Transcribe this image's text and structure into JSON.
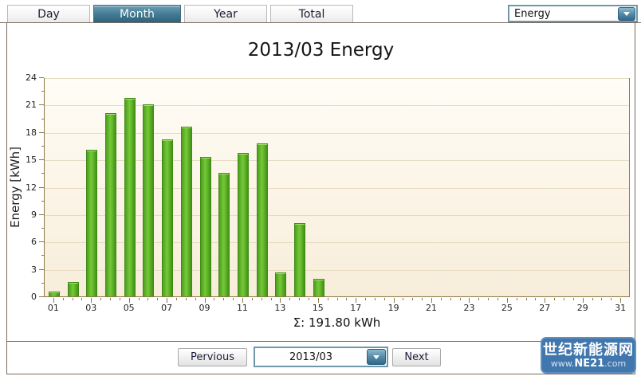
{
  "tabs": [
    {
      "label": "Day",
      "active": false
    },
    {
      "label": "Month",
      "active": true
    },
    {
      "label": "Year",
      "active": false
    },
    {
      "label": "Total",
      "active": false
    }
  ],
  "top_dropdown": {
    "value": "Energy"
  },
  "chart_data": {
    "type": "bar",
    "title": "2013/03 Energy",
    "ylabel": "Energy [kWh]",
    "xlabel": "",
    "ylim": [
      0,
      24
    ],
    "ytick_step": 3,
    "ytick_minor_step": 1.5,
    "grid": true,
    "legend": "none",
    "categories": [
      "01",
      "02",
      "03",
      "04",
      "05",
      "06",
      "07",
      "08",
      "09",
      "10",
      "11",
      "12",
      "13",
      "14",
      "15",
      "16",
      "17",
      "18",
      "19",
      "20",
      "21",
      "22",
      "23",
      "24",
      "25",
      "26",
      "27",
      "28",
      "29",
      "30",
      "31"
    ],
    "x_labeled_days": [
      "01",
      "03",
      "05",
      "07",
      "09",
      "11",
      "13",
      "15",
      "17",
      "19",
      "21",
      "23",
      "25",
      "27",
      "29",
      "31"
    ],
    "values": [
      0.5,
      1.6,
      16.2,
      20.2,
      21.9,
      21.2,
      17.3,
      18.7,
      15.4,
      13.6,
      15.8,
      16.9,
      2.6,
      8.1,
      1.9,
      0,
      0,
      0,
      0,
      0,
      0,
      0,
      0,
      0,
      0,
      0,
      0,
      0,
      0,
      0,
      0
    ],
    "sum_label": "Σ: 191.80 kWh"
  },
  "controls": {
    "previous_label": "Pervious",
    "month_value": "2013/03",
    "next_label": "Next"
  },
  "watermark": {
    "line1": "世纪新能源网",
    "line2_prefix": "www.",
    "line2_bold": "NE21",
    "line2_suffix": ".com"
  },
  "colors": {
    "bar": "#5fae27",
    "tab_active": "#417a93",
    "plot_bg": "#faf2e2",
    "plot_border": "#8a7a4a",
    "panel_border": "#7b695c",
    "watermark_bg": "#4177ad"
  }
}
